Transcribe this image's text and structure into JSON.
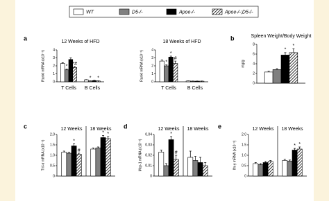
{
  "legend": [
    {
      "name": "WT",
      "color": "#ffffff",
      "hatch": false
    },
    {
      "name": "D5-/-",
      "color": "#808080",
      "hatch": false
    },
    {
      "name": "Apoe-/-",
      "color": "#000000",
      "hatch": false
    },
    {
      "name": "Apoe-/-;D5-/-",
      "color": "#ffffff",
      "hatch": true
    }
  ],
  "chart_data": [
    {
      "type": "bar",
      "panel": "a",
      "title": "12 Weeks of HFD",
      "y_label": "Rankl mRNA (x10⁻³)",
      "category_position": "bottom",
      "categories": [
        "T Cells",
        "B Cells"
      ],
      "ylim": [
        0,
        4
      ],
      "yticks": [
        0,
        1,
        2,
        3,
        4
      ],
      "series": [
        {
          "values": [
            2.3,
            0.25
          ],
          "errors": [
            0.1,
            0.03
          ]
        },
        {
          "values": [
            1.5,
            0.1
          ],
          "errors": [
            0.08,
            0.02
          ]
        },
        {
          "values": [
            2.8,
            0.15
          ],
          "errors": [
            0.2,
            0.03
          ]
        },
        {
          "values": [
            1.8,
            0.1
          ],
          "errors": [
            0.12,
            0.02
          ]
        }
      ],
      "annotations": [
        {
          "text": "*",
          "series": 1,
          "index": 0
        },
        {
          "text": "*#",
          "series": 3,
          "index": 0
        },
        {
          "text": "*",
          "series": 1,
          "index": 1
        },
        {
          "text": "*",
          "series": 3,
          "index": 1
        }
      ]
    },
    {
      "type": "bar",
      "title": "18 Weeks of HFD",
      "y_label": "Rankl mRNA (x10⁻³)",
      "category_position": "bottom",
      "categories": [
        "T Cells",
        "B Cells"
      ],
      "ylim": [
        0,
        4
      ],
      "yticks": [
        0,
        1,
        2,
        3,
        4
      ],
      "series": [
        {
          "values": [
            2.6,
            0.1
          ],
          "errors": [
            0.15,
            0.02
          ]
        },
        {
          "values": [
            2.0,
            0.08
          ],
          "errors": [
            0.12,
            0.02
          ]
        },
        {
          "values": [
            3.1,
            0.08
          ],
          "errors": [
            0.12,
            0.02
          ]
        },
        {
          "values": [
            2.3,
            0.08
          ],
          "errors": [
            0.3,
            0.02
          ]
        }
      ],
      "annotations": [
        {
          "text": "*",
          "series": 1,
          "index": 0
        },
        {
          "text": "*",
          "series": 2,
          "index": 0
        },
        {
          "text": "#",
          "series": 3,
          "index": 0
        }
      ]
    },
    {
      "type": "bar",
      "panel": "b",
      "title": "Spleen Weight/Body Weight",
      "y_label": "mg/g",
      "category_position": "bottom",
      "categories": [
        null
      ],
      "ylim": [
        0,
        8
      ],
      "yticks": [
        0,
        2,
        4,
        6,
        8
      ],
      "series": [
        {
          "values": [
            2.3
          ],
          "errors": [
            0.15
          ]
        },
        {
          "values": [
            2.8
          ],
          "errors": [
            0.2
          ]
        },
        {
          "values": [
            5.8
          ],
          "errors": [
            0.5
          ]
        },
        {
          "values": [
            6.3
          ],
          "errors": [
            0.8
          ]
        }
      ],
      "annotations": [
        {
          "text": "*",
          "series": 2,
          "index": 0
        },
        {
          "text": "*",
          "series": 3,
          "index": 0
        }
      ]
    },
    {
      "type": "bar",
      "panel": "c",
      "y_label": "Tnf-α mRNA (x10⁻³)",
      "category_position": "top",
      "categories": [
        "12 Weeks",
        "18 Weeks"
      ],
      "ylim": [
        0,
        2
      ],
      "yticks": [
        0,
        0.5,
        {
          "value": 1,
          "label": "1.0"
        },
        1.5,
        {
          "value": 2,
          "label": "2.0"
        }
      ],
      "series": [
        {
          "values": [
            1.15,
            1.3
          ],
          "errors": [
            0.05,
            0.05
          ]
        },
        {
          "values": [
            1.1,
            1.35
          ],
          "errors": [
            0.05,
            0.05
          ]
        },
        {
          "values": [
            1.45,
            1.85
          ],
          "errors": [
            0.1,
            0.1
          ]
        },
        {
          "values": [
            1.05,
            1.8
          ],
          "errors": [
            0.05,
            0.1
          ]
        }
      ],
      "annotations": [
        {
          "text": "*",
          "series": 2,
          "index": 0
        },
        {
          "text": "#",
          "series": 3,
          "index": 0
        },
        {
          "text": "*",
          "series": 2,
          "index": 1
        },
        {
          "text": "*",
          "series": 3,
          "index": 1
        }
      ]
    },
    {
      "type": "bar",
      "panel": "d",
      "y_label": "Mcp-1 mRNA (x10⁻³)",
      "category_position": "top",
      "categories": [
        "12 Weeks",
        "18 Weeks"
      ],
      "ylim": [
        0,
        0.04
      ],
      "yticks": [
        0,
        0.01,
        0.02,
        0.03,
        0.04
      ],
      "series": [
        {
          "values": [
            0.023,
            0.018
          ],
          "errors": [
            0.002,
            0.006
          ]
        },
        {
          "values": [
            0.01,
            0.015
          ],
          "errors": [
            0.002,
            0.004
          ]
        },
        {
          "values": [
            0.035,
            0.013
          ],
          "errors": [
            0.003,
            0.005
          ]
        },
        {
          "values": [
            0.016,
            0.01
          ],
          "errors": [
            0.004,
            0.003
          ]
        }
      ],
      "annotations": [
        {
          "text": "*",
          "series": 2,
          "index": 0
        },
        {
          "text": "#",
          "series": 3,
          "index": 0
        }
      ]
    },
    {
      "type": "bar",
      "panel": "e",
      "y_label": "Ifn-γ mRNA (x10⁻³)",
      "category_position": "top",
      "categories": [
        "12 Weeks",
        "18 Weeks"
      ],
      "ylim": [
        0,
        2
      ],
      "yticks": [
        0,
        0.5,
        {
          "value": 1,
          "label": "1.0"
        },
        1.5,
        {
          "value": 2,
          "label": "2.0"
        }
      ],
      "series": [
        {
          "values": [
            0.6,
            0.75
          ],
          "errors": [
            0.05,
            0.05
          ]
        },
        {
          "values": [
            0.55,
            0.72
          ],
          "errors": [
            0.05,
            0.05
          ]
        },
        {
          "values": [
            0.65,
            1.25
          ],
          "errors": [
            0.05,
            0.08
          ]
        },
        {
          "values": [
            0.7,
            1.3
          ],
          "errors": [
            0.05,
            0.1
          ]
        }
      ],
      "annotations": [
        {
          "text": "*",
          "series": 2,
          "index": 1
        },
        {
          "text": "*",
          "series": 3,
          "index": 1
        }
      ]
    }
  ]
}
